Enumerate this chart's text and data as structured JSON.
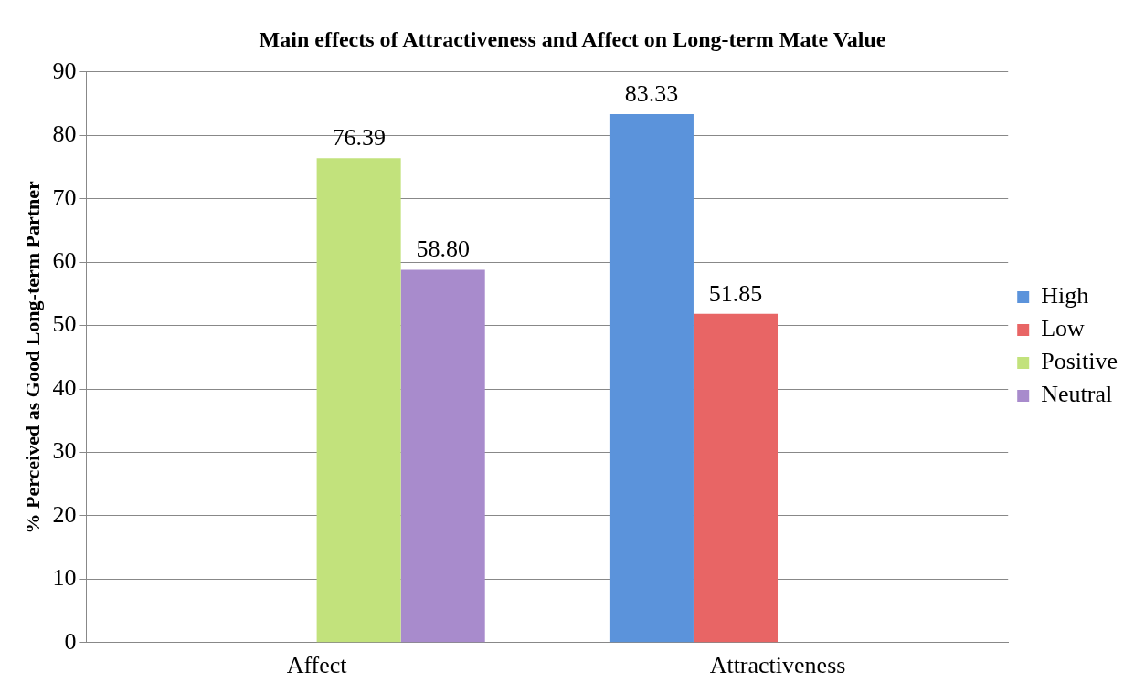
{
  "chart_data": {
    "type": "bar",
    "title": "Main effects of Attractiveness and Affect on Long-term Mate Value",
    "ylabel": "% Perceived as Good Long-term Partner",
    "categories": [
      "Affect",
      "Attractiveness"
    ],
    "series": [
      {
        "name": "High",
        "color": "#5b93db",
        "values": [
          null,
          83.33
        ],
        "value_labels": [
          null,
          "83.33"
        ]
      },
      {
        "name": "Low",
        "color": "#e86565",
        "values": [
          null,
          51.85
        ],
        "value_labels": [
          null,
          "51.85"
        ]
      },
      {
        "name": "Positive",
        "color": "#c2e27c",
        "values": [
          76.39,
          null
        ],
        "value_labels": [
          "76.39",
          null
        ]
      },
      {
        "name": "Neutral",
        "color": "#a88bcc",
        "values": [
          58.8,
          null
        ],
        "value_labels": [
          "58.80",
          null
        ]
      }
    ],
    "ylim": [
      0,
      90
    ],
    "yticks": [
      0,
      10,
      20,
      30,
      40,
      50,
      60,
      70,
      80,
      90
    ],
    "grid": "y",
    "legend": "right"
  }
}
